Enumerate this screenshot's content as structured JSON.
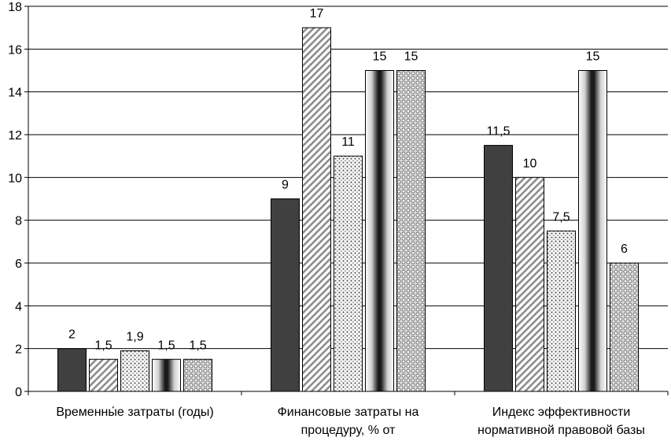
{
  "chart_data": {
    "type": "bar",
    "title": "",
    "xlabel": "",
    "ylabel": "",
    "ylim": [
      0,
      18
    ],
    "ytick_step": 2,
    "grid": true,
    "legend": "none",
    "categories": [
      [
        "Временны́е затраты (годы)"
      ],
      [
        "Финансовые затраты на",
        "процедуру, % от"
      ],
      [
        "Индекс эффективности",
        "нормативной правовой базы"
      ]
    ],
    "series": [
      {
        "fill": "solid-dark",
        "values": [
          2,
          9,
          11.5
        ],
        "labels": [
          "2",
          "9",
          "11,5"
        ]
      },
      {
        "fill": "diagonal-hatch",
        "values": [
          1.5,
          17,
          10
        ],
        "labels": [
          "1,5",
          "17",
          "10"
        ]
      },
      {
        "fill": "dots",
        "values": [
          1.9,
          11,
          7.5
        ],
        "labels": [
          "1,9",
          "11",
          "7,5"
        ]
      },
      {
        "fill": "metal-gradient",
        "values": [
          1.5,
          15,
          15
        ],
        "labels": [
          "1,5",
          "15",
          "15"
        ]
      },
      {
        "fill": "circles",
        "values": [
          1.5,
          15,
          6
        ],
        "labels": [
          "1,5",
          "15",
          "6"
        ]
      }
    ],
    "colors": {
      "dark": "#404040",
      "grid": "#000000"
    }
  }
}
